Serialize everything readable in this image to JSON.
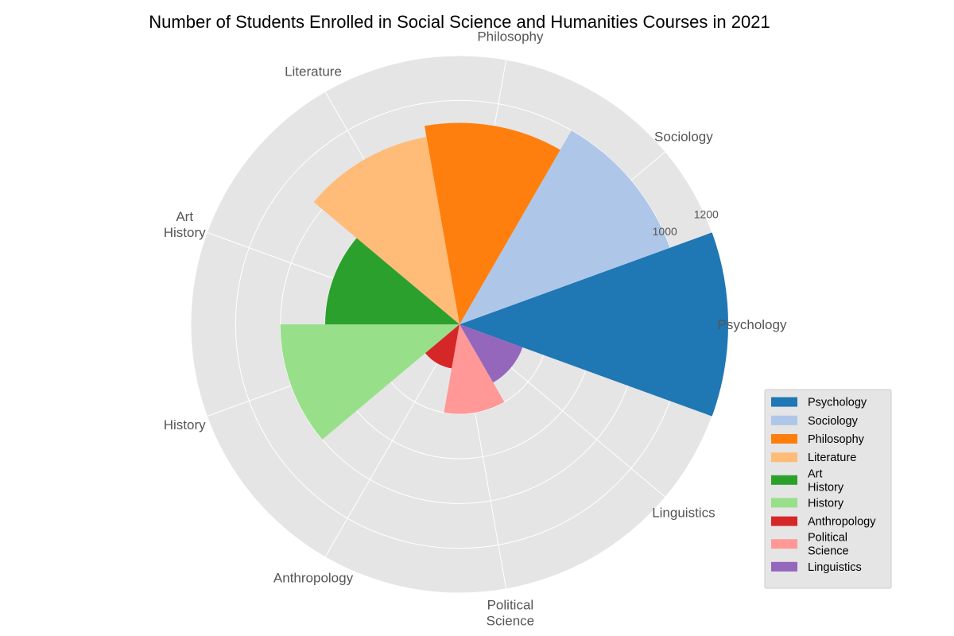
{
  "chart_data": {
    "type": "polar-bar",
    "title": "Number of Students Enrolled in Social Science and Humanities Courses in 2021",
    "categories": [
      "Psychology",
      "Sociology",
      "Philosophy",
      "Literature",
      "Art History",
      "History",
      "Anthropology",
      "Political Science",
      "Linguistics"
    ],
    "category_labels": [
      [
        "Psychology"
      ],
      [
        "Sociology"
      ],
      [
        "Philosophy"
      ],
      [
        "Literature"
      ],
      [
        "Art",
        "History"
      ],
      [
        "History"
      ],
      [
        "Anthropology"
      ],
      [
        "Political",
        "Science"
      ],
      [
        "Linguistics"
      ]
    ],
    "values": [
      1200,
      1000,
      900,
      850,
      600,
      800,
      200,
      400,
      300
    ],
    "colors": [
      "#1f77b4",
      "#aec7e8",
      "#ff7f0e",
      "#ffbb78",
      "#2ca02c",
      "#98df8a",
      "#d62728",
      "#ff9896",
      "#9467bd"
    ],
    "radial_ticks": [
      "1000",
      "1200"
    ],
    "rlim": [
      0,
      1200
    ],
    "grid": true,
    "legend_position": "lower-right"
  }
}
